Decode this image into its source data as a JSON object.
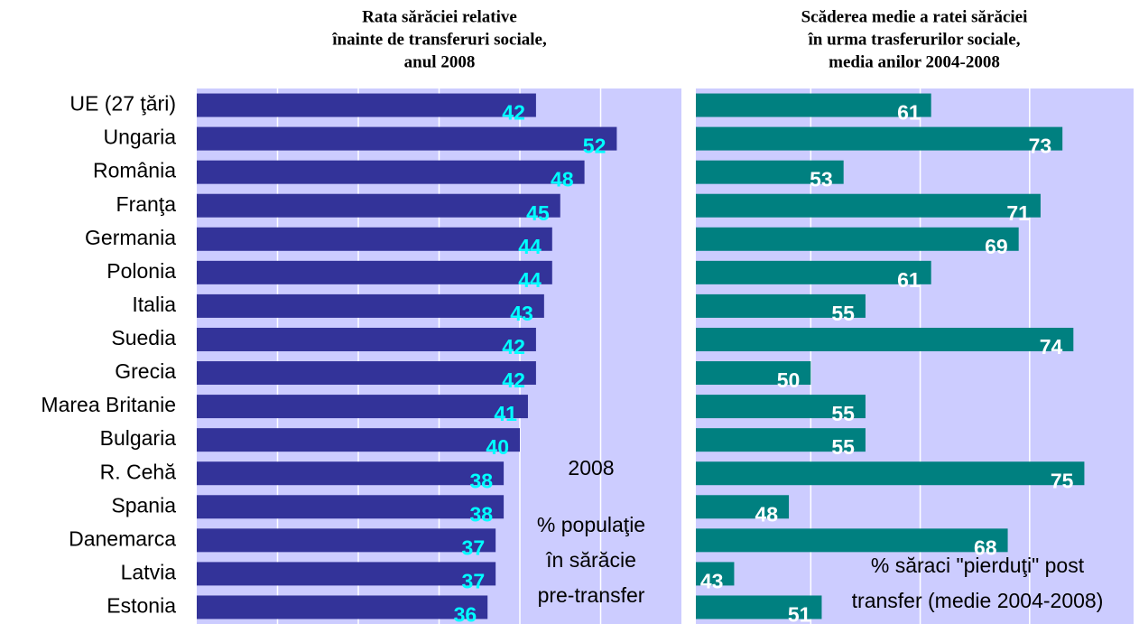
{
  "chart_data": [
    {
      "type": "bar",
      "orientation": "horizontal",
      "title": [
        "Rata sărăciei relative",
        "înainte de transferuri sociale,",
        "anul 2008"
      ],
      "categories": [
        "UE (27 ţări)",
        "Ungaria",
        "România",
        "Franţa",
        "Germania",
        "Polonia",
        "Italia",
        "Suedia",
        "Grecia",
        "Marea Britanie",
        "Bulgaria",
        "R. Cehă",
        "Spania",
        "Danemarca",
        "Latvia",
        "Estonia"
      ],
      "values": [
        42,
        52,
        48,
        45,
        44,
        44,
        43,
        42,
        42,
        41,
        40,
        38,
        38,
        37,
        37,
        36
      ],
      "color": "#333399",
      "label_color": "#00ffff",
      "background": "#ccccff",
      "xlim": [
        0,
        60
      ],
      "xticks": [
        10,
        20,
        30,
        40,
        50
      ],
      "grid": true,
      "annotations": [
        "2008",
        "% populaţie",
        "în sărăcie",
        "pre-transfer"
      ]
    },
    {
      "type": "bar",
      "orientation": "horizontal",
      "title": [
        "Scăderea medie a ratei sărăciei",
        "în urma trasferurilor sociale,",
        "media anilor 2004-2008"
      ],
      "values": [
        61,
        73,
        53,
        71,
        69,
        61,
        55,
        74,
        50,
        55,
        55,
        75,
        48,
        68,
        43,
        51
      ],
      "color": "#008080",
      "label_color": "#ffffff",
      "background": "#ccccff",
      "xlim": [
        39.5,
        79.5
      ],
      "xticks": [
        50,
        60,
        70
      ],
      "grid": true,
      "annotations": [
        "% săraci \"pierduţi\" post",
        "transfer (medie 2004-2008)"
      ]
    }
  ]
}
